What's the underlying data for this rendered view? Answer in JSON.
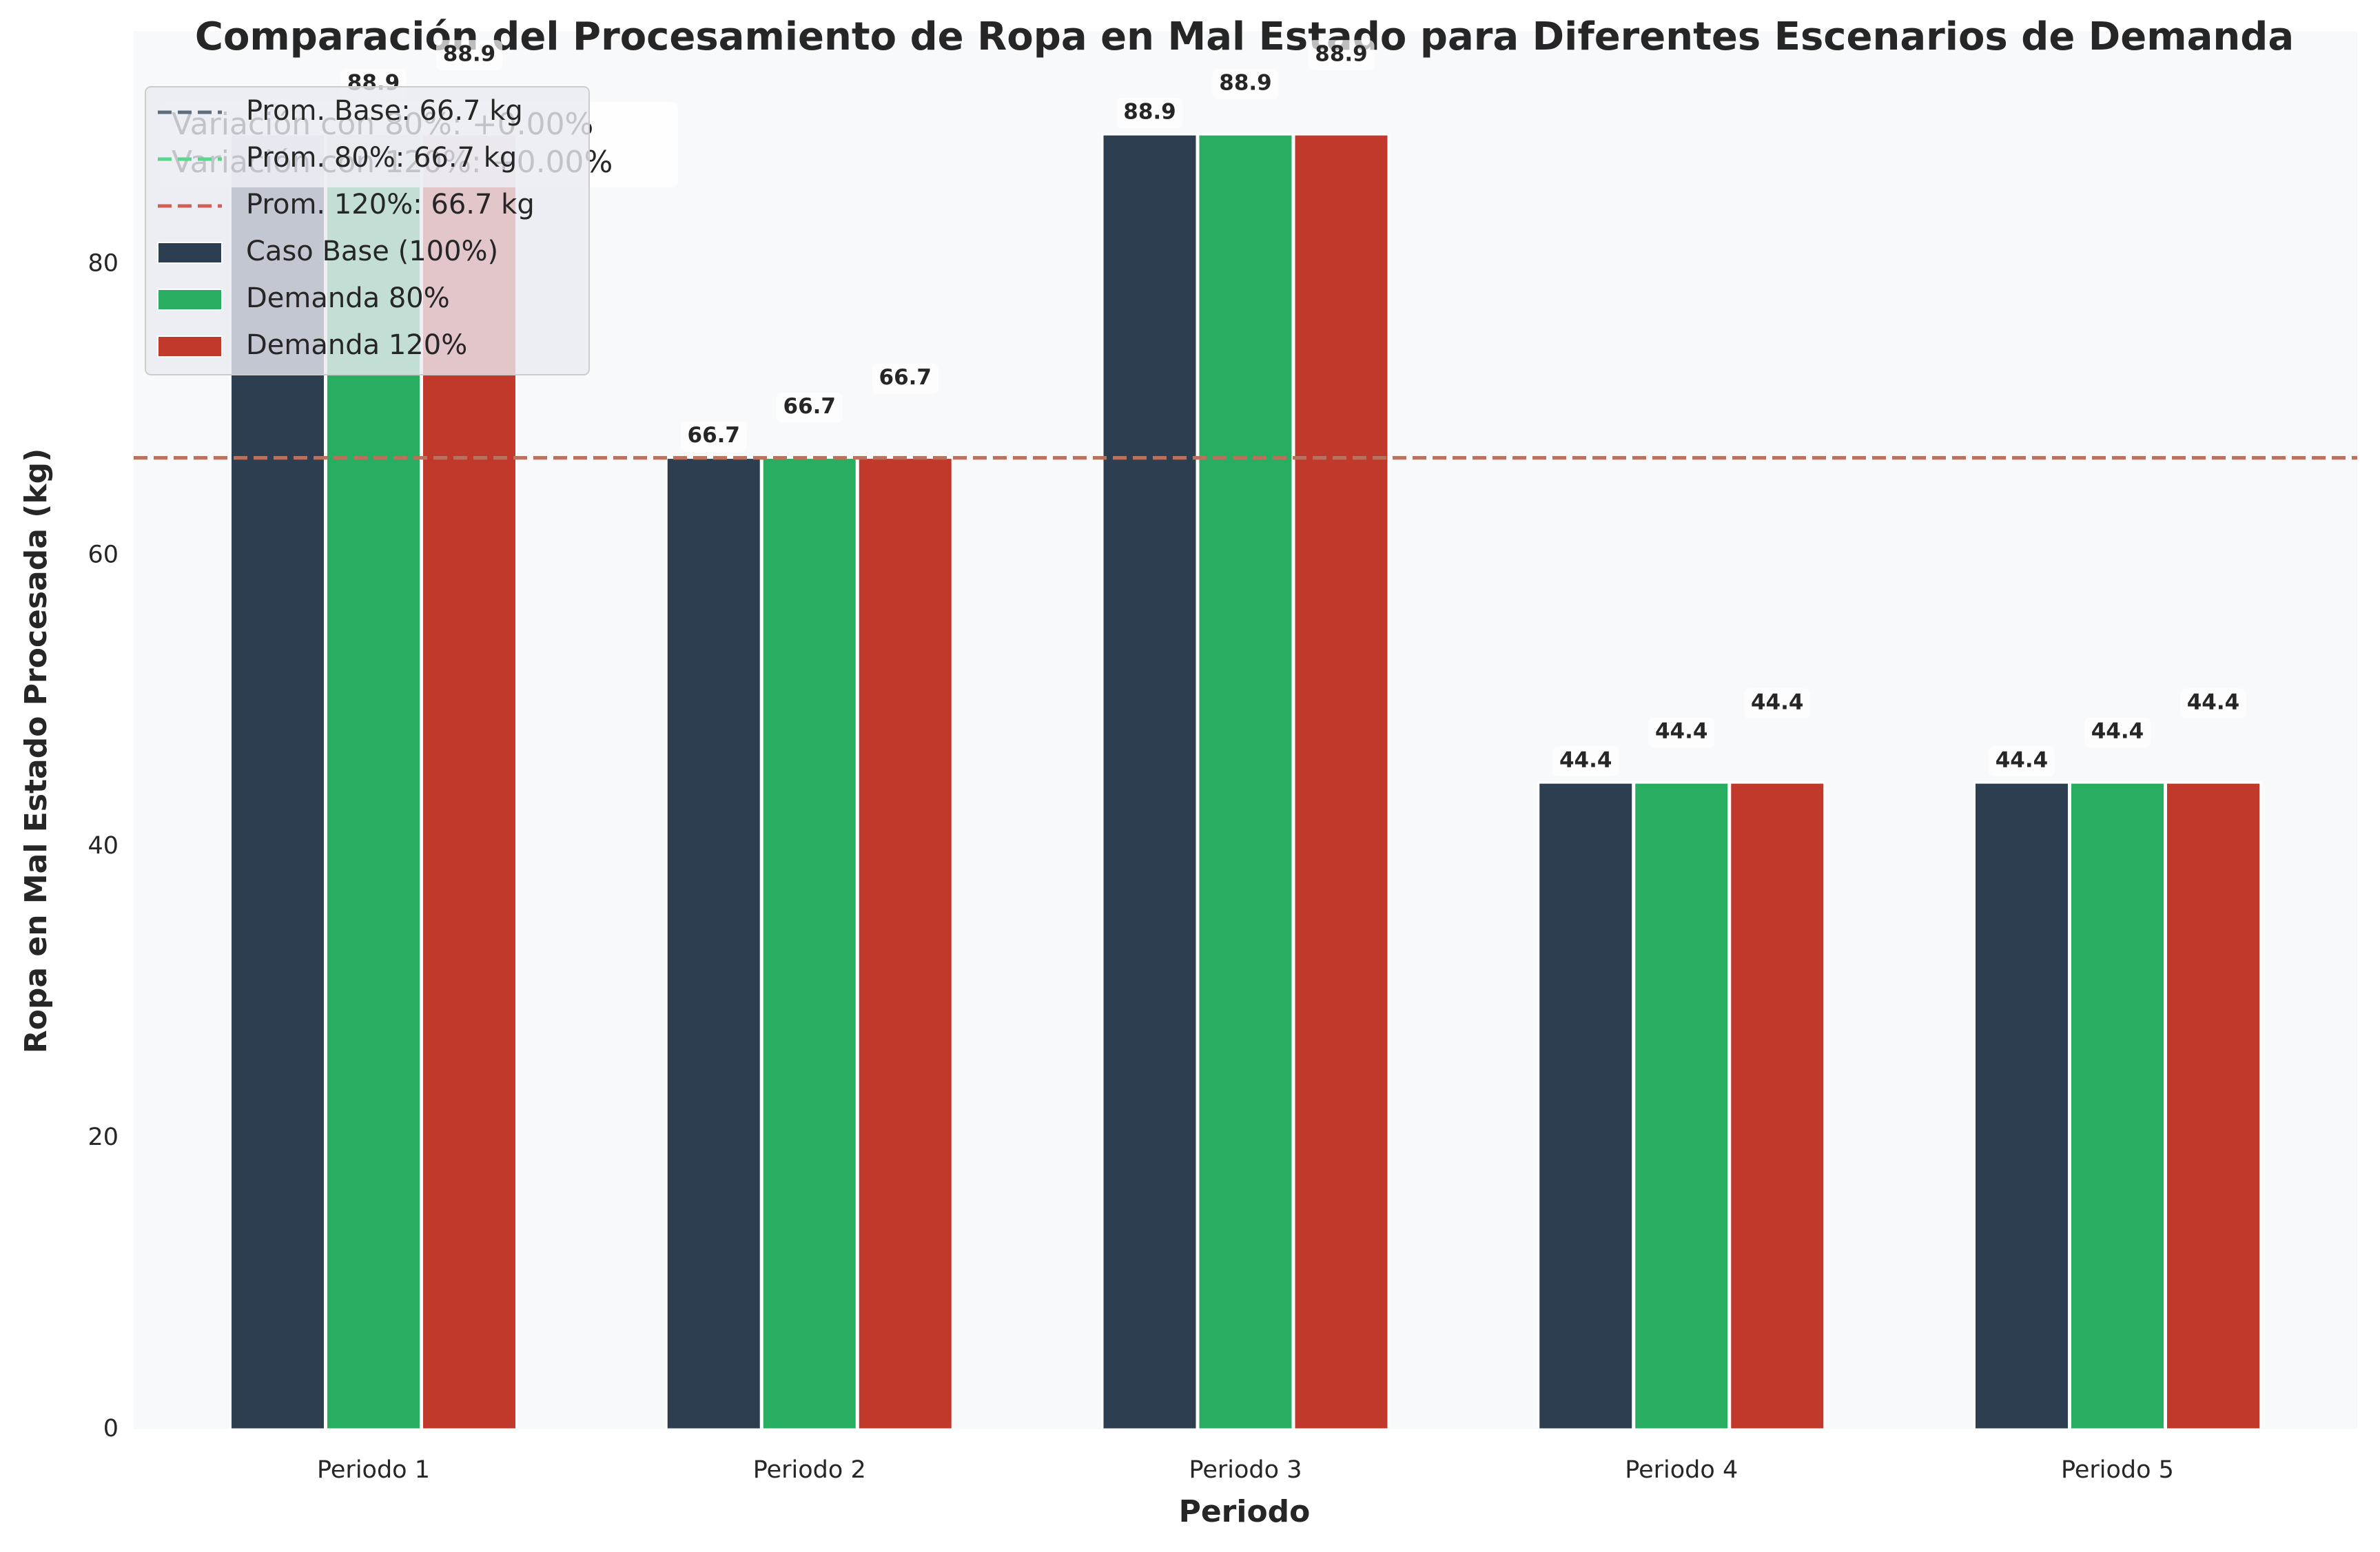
{
  "chart_data": {
    "type": "bar",
    "title": "Comparación del Procesamiento de Ropa en Mal Estado para Diferentes Escenarios de Demanda",
    "x_label": "Periodo",
    "y_label": "Ropa en Mal Estado Procesada (kg)",
    "categories": [
      "Periodo 1",
      "Periodo 2",
      "Periodo 3",
      "Periodo 4",
      "Periodo 5"
    ],
    "series": [
      {
        "name": "Caso Base (100%)",
        "color": "#2c3e50",
        "values": [
          88.9,
          66.7,
          88.9,
          44.4,
          44.4
        ]
      },
      {
        "name": "Demanda 80%",
        "color": "#27ae60",
        "values": [
          88.9,
          66.7,
          88.9,
          44.4,
          44.4
        ]
      },
      {
        "name": "Demanda 120%",
        "color": "#c0392b",
        "values": [
          88.9,
          66.7,
          88.9,
          44.4,
          44.4
        ]
      }
    ],
    "avg_lines": [
      {
        "name": "Prom. Base: 66.7 kg",
        "value": 66.7,
        "color": "#5d6d7e"
      },
      {
        "name": "Prom. 80%: 66.7 kg",
        "value": 66.7,
        "color": "#58d68d"
      },
      {
        "name": "Prom. 120%: 66.7 kg",
        "value": 66.7,
        "color": "#cd6155"
      }
    ],
    "annotations": [
      "Variación con 80%: +0.00%",
      "Variación con 120%: +0.00%"
    ],
    "ylim": [
      0,
      96
    ],
    "yticks": [
      0,
      20,
      40,
      60,
      80
    ],
    "grid": false,
    "legend": "upper left"
  }
}
